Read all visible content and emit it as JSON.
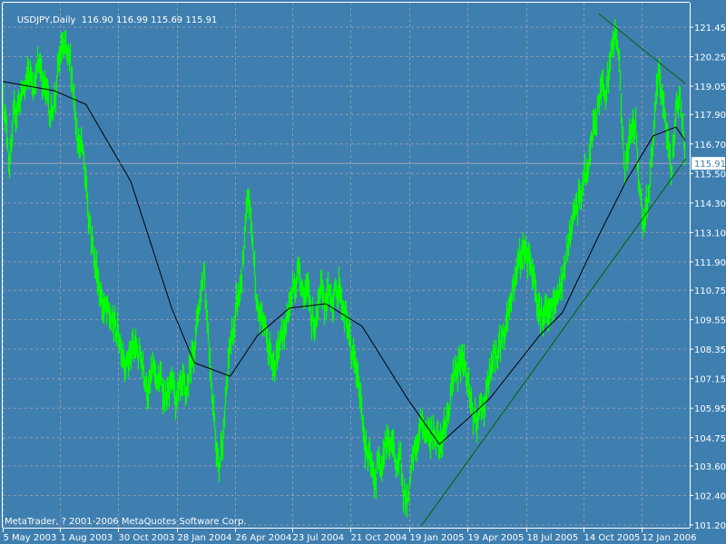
{
  "header": {
    "symbol": "USDJPY,Daily",
    "open": "116.90",
    "high": "116.99",
    "low": "115.69",
    "close": "115.91"
  },
  "footer": {
    "copyright": "MetaTrader, ? 2001-2006 MetaQuotes Software Corp."
  },
  "colors": {
    "background": "#3f7fb0",
    "bars": "#00ff00",
    "moving_average": "#000000",
    "trendlines": "#006400",
    "grid": "#8a9aab",
    "axis": "#ffffff",
    "current_price_label_bg": "#ffffff"
  },
  "chart_data": {
    "type": "bar",
    "subtype": "high-low bar chart (OHLC)",
    "title": "USDJPY,Daily",
    "grid": true,
    "current_price": 115.91,
    "y_ticks": [
      "121.45",
      "120.25",
      "119.05",
      "117.90",
      "116.70",
      "115.50",
      "114.30",
      "113.10",
      "111.90",
      "110.75",
      "109.55",
      "108.35",
      "107.15",
      "105.95",
      "104.75",
      "103.60",
      "102.40",
      "101.20"
    ],
    "ylim": [
      101.2,
      121.45
    ],
    "x_ticks": [
      {
        "label": "5 May 2003",
        "date": "2003-05-05"
      },
      {
        "label": "1 Aug 2003",
        "date": "2003-08-01"
      },
      {
        "label": "30 Oct 2003",
        "date": "2003-10-30"
      },
      {
        "label": "28 Jan 2004",
        "date": "2004-01-28"
      },
      {
        "label": "26 Apr 2004",
        "date": "2004-04-26"
      },
      {
        "label": "23 Jul 2004",
        "date": "2004-07-23"
      },
      {
        "label": "21 Oct 2004",
        "date": "2004-10-21"
      },
      {
        "label": "19 Jan 2005",
        "date": "2005-01-19"
      },
      {
        "label": "19 Apr 2005",
        "date": "2005-04-19"
      },
      {
        "label": "18 Jul 2005",
        "date": "2005-07-18"
      },
      {
        "label": "14 Oct 2005",
        "date": "2005-10-14"
      },
      {
        "label": "12 Jan 2006",
        "date": "2006-01-12"
      }
    ],
    "price_series": [
      [
        "2003-05-05",
        118.9
      ],
      [
        "2003-05-15",
        116.3
      ],
      [
        "2003-05-29",
        118.5
      ],
      [
        "2003-07-02",
        120.0
      ],
      [
        "2003-07-16",
        117.8
      ],
      [
        "2003-08-04",
        120.5
      ],
      [
        "2003-08-20",
        118.9
      ],
      [
        "2003-09-05",
        116.3
      ],
      [
        "2003-09-24",
        111.9
      ],
      [
        "2003-10-15",
        109.3
      ],
      [
        "2003-11-11",
        108.5
      ],
      [
        "2003-12-09",
        107.8
      ],
      [
        "2004-01-06",
        106.7
      ],
      [
        "2004-02-10",
        105.6
      ],
      [
        "2004-02-24",
        108.9
      ],
      [
        "2004-03-09",
        111.9
      ],
      [
        "2004-03-22",
        107.1
      ],
      [
        "2004-04-01",
        103.75
      ],
      [
        "2004-04-19",
        108.5
      ],
      [
        "2004-05-03",
        110.4
      ],
      [
        "2004-05-17",
        114.1
      ],
      [
        "2004-05-31",
        110.0
      ],
      [
        "2004-06-21",
        108.2
      ],
      [
        "2004-07-12",
        109.3
      ],
      [
        "2004-08-02",
        111.9
      ],
      [
        "2004-08-23",
        109.65
      ],
      [
        "2004-09-13",
        110.0
      ],
      [
        "2004-10-04",
        111.1
      ],
      [
        "2004-10-18",
        108.9
      ],
      [
        "2004-11-08",
        105.6
      ],
      [
        "2004-11-25",
        102.6
      ],
      [
        "2004-12-13",
        105.2
      ],
      [
        "2005-01-03",
        103.4
      ],
      [
        "2005-01-17",
        102.3
      ],
      [
        "2005-02-07",
        105.2
      ],
      [
        "2005-02-28",
        104.85
      ],
      [
        "2005-03-21",
        105.96
      ],
      [
        "2005-04-11",
        108.5
      ],
      [
        "2005-05-02",
        104.85
      ],
      [
        "2005-05-23",
        107.1
      ],
      [
        "2005-06-13",
        108.9
      ],
      [
        "2005-07-04",
        111.9
      ],
      [
        "2005-07-22",
        112.6
      ],
      [
        "2005-08-08",
        110.4
      ],
      [
        "2005-08-22",
        109.3
      ],
      [
        "2005-09-05",
        110.4
      ],
      [
        "2005-09-26",
        113.0
      ],
      [
        "2005-10-17",
        115.2
      ],
      [
        "2005-11-07",
        118.5
      ],
      [
        "2005-11-18",
        119.6
      ],
      [
        "2005-12-05",
        121.3
      ],
      [
        "2005-12-16",
        115.9
      ],
      [
        "2006-01-02",
        117.8
      ],
      [
        "2006-01-13",
        113.7
      ],
      [
        "2006-01-23",
        115.2
      ],
      [
        "2006-02-06",
        118.9
      ],
      [
        "2006-02-27",
        115.9
      ],
      [
        "2006-03-10",
        119.1
      ],
      [
        "2006-03-20",
        115.91
      ]
    ],
    "moving_average": [
      [
        "2003-05-05",
        119.24
      ],
      [
        "2003-07-23",
        118.87
      ],
      [
        "2003-09-10",
        118.31
      ],
      [
        "2003-11-18",
        115.18
      ],
      [
        "2004-01-20",
        110.02
      ],
      [
        "2004-02-24",
        107.8
      ],
      [
        "2004-04-19",
        107.25
      ],
      [
        "2004-05-31",
        108.91
      ],
      [
        "2004-07-19",
        110.02
      ],
      [
        "2004-09-13",
        110.2
      ],
      [
        "2004-11-08",
        109.28
      ],
      [
        "2005-01-17",
        106.33
      ],
      [
        "2005-03-07",
        104.48
      ],
      [
        "2005-05-23",
        106.33
      ],
      [
        "2005-08-08",
        108.91
      ],
      [
        "2005-09-12",
        109.83
      ],
      [
        "2005-11-07",
        112.97
      ],
      [
        "2005-12-19",
        115.18
      ],
      [
        "2006-01-30",
        117.03
      ],
      [
        "2006-03-06",
        117.39
      ],
      [
        "2006-03-20",
        116.84
      ]
    ],
    "trendlines": [
      {
        "from": [
          "2005-02-07",
          101.16
        ],
        "to": [
          "2006-03-21",
          116.1
        ]
      },
      {
        "from": [
          "2005-11-07",
          122.0
        ],
        "to": [
          "2006-03-20",
          119.16
        ]
      }
    ]
  }
}
